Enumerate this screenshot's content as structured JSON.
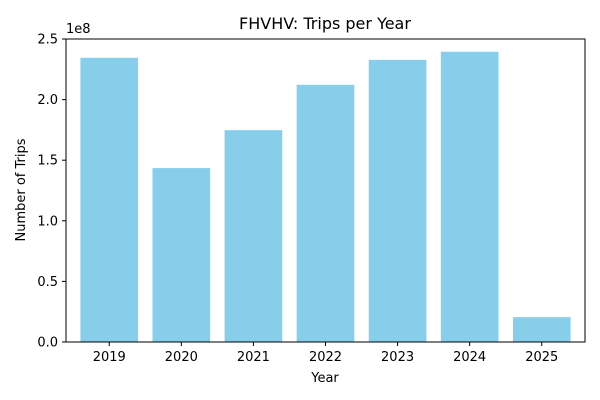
{
  "chart_data": {
    "type": "bar",
    "title": "FHVHV: Trips per Year",
    "xlabel": "Year",
    "ylabel": "Number of Trips",
    "offset_label": "1e8",
    "categories": [
      "2019",
      "2020",
      "2021",
      "2022",
      "2023",
      "2024",
      "2025"
    ],
    "values": [
      234500000,
      143500000,
      174800000,
      212200000,
      232800000,
      239500000,
      20500000
    ],
    "ylim": [
      0,
      250000000
    ],
    "yticks": [
      {
        "value": 0,
        "label": "0.0"
      },
      {
        "value": 50000000,
        "label": "0.5"
      },
      {
        "value": 100000000,
        "label": "1.0"
      },
      {
        "value": 150000000,
        "label": "1.5"
      },
      {
        "value": 200000000,
        "label": "2.0"
      },
      {
        "value": 250000000,
        "label": "2.5"
      }
    ],
    "bar_color": "#87ceeb",
    "grid": false,
    "legend": "none"
  }
}
